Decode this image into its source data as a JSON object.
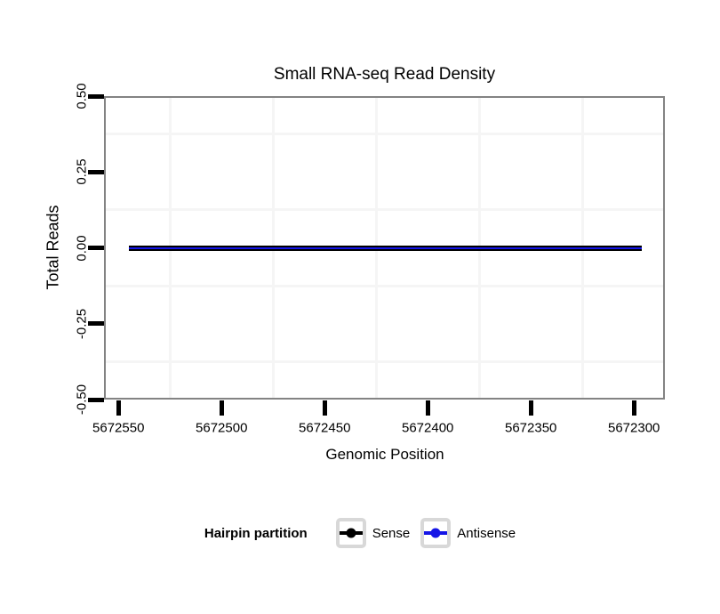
{
  "chart_data": {
    "type": "line",
    "title": "Small RNA-seq Read Density",
    "xlabel": "Genomic Position",
    "ylabel": "Total Reads",
    "x_reversed": true,
    "xlim": [
      5672285,
      5672557
    ],
    "ylim": [
      -0.5,
      0.5
    ],
    "x_ticks": [
      5672550,
      5672500,
      5672450,
      5672400,
      5672350,
      5672300
    ],
    "x_tick_labels": [
      "5672550",
      "5672500",
      "5672450",
      "5672400",
      "5672350",
      "5672300"
    ],
    "y_ticks": [
      0.5,
      0.25,
      0,
      -0.25,
      -0.5
    ],
    "y_tick_labels": [
      "0.50",
      "0.25",
      "0.00",
      "-0.25",
      "-0.50"
    ],
    "grid": "minor gridlines only, very light grey on white panel, grey panel border",
    "legend_position": "bottom",
    "series": [
      {
        "name": "Sense",
        "color": "#000000",
        "x": [
          5672545,
          5672296
        ],
        "y": [
          0,
          0
        ]
      },
      {
        "name": "Antisense",
        "color": "#1414e6",
        "x": [
          5672545,
          5672296
        ],
        "y": [
          0,
          0
        ]
      }
    ]
  },
  "legend": {
    "title": "Hairpin partition",
    "items": [
      {
        "label": "Sense",
        "color": "#000000"
      },
      {
        "label": "Antisense",
        "color": "#1414e6"
      }
    ]
  }
}
